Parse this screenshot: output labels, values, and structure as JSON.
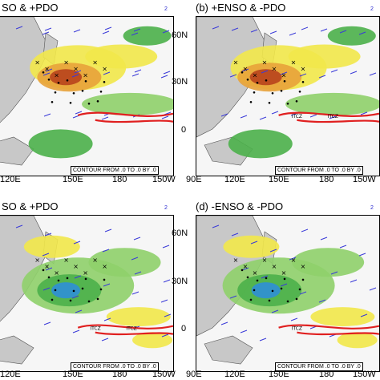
{
  "panels": [
    {
      "id": "a",
      "title": "(a) +ENSO & +PDO",
      "title_visible": "SO & +PDO",
      "vector_ref": "2",
      "contour_label": "CONTOUR FROM .0 TO .0 BY .0",
      "x_ticks": [
        "120E",
        "150E",
        "180",
        "150W"
      ],
      "y_ticks": []
    },
    {
      "id": "b",
      "title": "(b) +ENSO & -PDO",
      "vector_ref": "2",
      "contour_label": "CONTOUR FROM .0 TO .0 BY .0",
      "x_ticks": [
        "90E",
        "120E",
        "150E",
        "180",
        "150W"
      ],
      "y_ticks": [
        "60N",
        "30N",
        "0"
      ],
      "itcz_labels": [
        "ITCZ",
        "ITCZ"
      ]
    },
    {
      "id": "c",
      "title": "(c) -ENSO & +PDO",
      "title_visible": "SO & +PDO",
      "vector_ref": "2",
      "contour_label": "CONTOUR FROM .0 TO .0 BY .0",
      "x_ticks": [
        "120E",
        "150E",
        "180",
        "150W"
      ],
      "y_ticks": [],
      "itcz_labels": [
        "ITCZ",
        "ITCZ"
      ]
    },
    {
      "id": "d",
      "title": "(d) -ENSO & -PDO",
      "vector_ref": "2",
      "contour_label": "CONTOUR FROM .0 TO .0 BY .0",
      "x_ticks": [
        "90E",
        "120E",
        "150E",
        "180",
        "150W"
      ],
      "y_ticks": [
        "60N",
        "30N",
        "0"
      ],
      "itcz_labels": [
        "ITCZ"
      ]
    }
  ],
  "chart_data": [
    {
      "type": "heatmap",
      "panel": "a",
      "title": "+ENSO & +PDO",
      "x_range": [
        "90E",
        "150W"
      ],
      "y_range": [
        "20S",
        "70N"
      ],
      "notes": "shaded anomaly map with wind vectors, significance dots and red ITCZ contour"
    },
    {
      "type": "heatmap",
      "panel": "b",
      "title": "+ENSO & -PDO",
      "x_range": [
        "90E",
        "150W"
      ],
      "y_range": [
        "20S",
        "70N"
      ],
      "y_ticks": [
        "60N",
        "30N",
        "0"
      ]
    },
    {
      "type": "heatmap",
      "panel": "c",
      "title": "-ENSO & +PDO",
      "x_range": [
        "90E",
        "150W"
      ],
      "y_range": [
        "20S",
        "70N"
      ]
    },
    {
      "type": "heatmap",
      "panel": "d",
      "title": "-ENSO & -PDO",
      "x_range": [
        "90E",
        "150W"
      ],
      "y_range": [
        "20S",
        "70N"
      ],
      "y_ticks": [
        "60N",
        "30N",
        "0"
      ]
    }
  ],
  "colors": {
    "positive_light": "#f2e84a",
    "positive_mid": "#e8a23a",
    "positive_strong": "#b8421c",
    "negative_light": "#8fd06a",
    "negative_mid": "#4bb04a",
    "negative_strong": "#2f8fd6",
    "land": "#c8c8c8",
    "itcz": "#e02020",
    "vectors": "#3a3ad8"
  }
}
